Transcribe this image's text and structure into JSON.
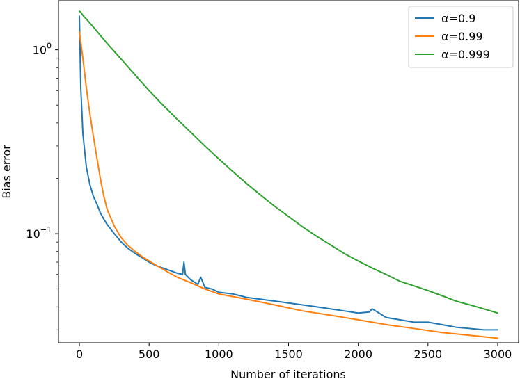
{
  "chart_data": {
    "type": "line",
    "title": "",
    "xlabel": "Number of iterations",
    "ylabel": "Bias error",
    "xscale": "linear",
    "yscale": "log",
    "xlim": [
      -150,
      3150
    ],
    "ylim": [
      0.0255,
      1.85
    ],
    "x_ticks": [
      0,
      500,
      1000,
      1500,
      2000,
      2500,
      3000
    ],
    "x_tick_labels": [
      "0",
      "500",
      "1000",
      "1500",
      "2000",
      "2500",
      "3000"
    ],
    "y_ticks": [
      {
        "value": 1.0,
        "base": "10",
        "exp": "0"
      },
      {
        "value": 0.1,
        "base": "10",
        "exp": "−1"
      }
    ],
    "grid": false,
    "legend_position": "top-right",
    "series": [
      {
        "name": "α=0.9",
        "color": "#1f77b4",
        "x": [
          0,
          10,
          25,
          50,
          75,
          100,
          125,
          150,
          175,
          200,
          250,
          300,
          350,
          400,
          450,
          500,
          550,
          600,
          650,
          700,
          740,
          750,
          760,
          800,
          850,
          870,
          900,
          950,
          1000,
          1100,
          1200,
          1300,
          1400,
          1500,
          1600,
          1700,
          1800,
          1900,
          2000,
          2080,
          2100,
          2200,
          2300,
          2400,
          2500,
          2600,
          2700,
          2800,
          2900,
          3000
        ],
        "y": [
          1.52,
          0.62,
          0.35,
          0.23,
          0.185,
          0.16,
          0.145,
          0.13,
          0.12,
          0.112,
          0.1,
          0.09,
          0.083,
          0.078,
          0.074,
          0.07,
          0.067,
          0.065,
          0.063,
          0.061,
          0.06,
          0.07,
          0.06,
          0.056,
          0.053,
          0.058,
          0.051,
          0.05,
          0.048,
          0.047,
          0.045,
          0.044,
          0.043,
          0.042,
          0.041,
          0.04,
          0.039,
          0.038,
          0.037,
          0.0375,
          0.039,
          0.035,
          0.034,
          0.033,
          0.033,
          0.032,
          0.031,
          0.0305,
          0.03,
          0.03
        ]
      },
      {
        "name": "α=0.99",
        "color": "#ff7f0e",
        "x": [
          0,
          25,
          50,
          75,
          100,
          125,
          150,
          175,
          200,
          250,
          300,
          350,
          400,
          450,
          500,
          600,
          700,
          800,
          900,
          1000,
          1200,
          1400,
          1600,
          1800,
          2000,
          2200,
          2400,
          2600,
          2800,
          3000
        ],
        "y": [
          1.25,
          0.9,
          0.62,
          0.45,
          0.34,
          0.26,
          0.2,
          0.16,
          0.135,
          0.11,
          0.095,
          0.086,
          0.08,
          0.075,
          0.071,
          0.064,
          0.058,
          0.054,
          0.05,
          0.047,
          0.044,
          0.041,
          0.038,
          0.036,
          0.034,
          0.032,
          0.0305,
          0.029,
          0.028,
          0.027
        ]
      },
      {
        "name": "α=0.999",
        "color": "#2ca02c",
        "x": [
          0,
          10,
          25,
          50,
          100,
          150,
          200,
          300,
          400,
          500,
          600,
          700,
          800,
          900,
          1000,
          1100,
          1200,
          1300,
          1400,
          1500,
          1600,
          1700,
          1800,
          1900,
          2000,
          2100,
          2200,
          2300,
          2400,
          2500,
          2600,
          2700,
          2800,
          2900,
          3000
        ],
        "y": [
          1.62,
          1.6,
          1.54,
          1.47,
          1.33,
          1.2,
          1.08,
          0.89,
          0.73,
          0.6,
          0.5,
          0.42,
          0.355,
          0.3,
          0.255,
          0.218,
          0.187,
          0.162,
          0.141,
          0.124,
          0.109,
          0.097,
          0.087,
          0.078,
          0.071,
          0.065,
          0.06,
          0.055,
          0.052,
          0.049,
          0.046,
          0.043,
          0.041,
          0.039,
          0.037
        ]
      }
    ]
  }
}
